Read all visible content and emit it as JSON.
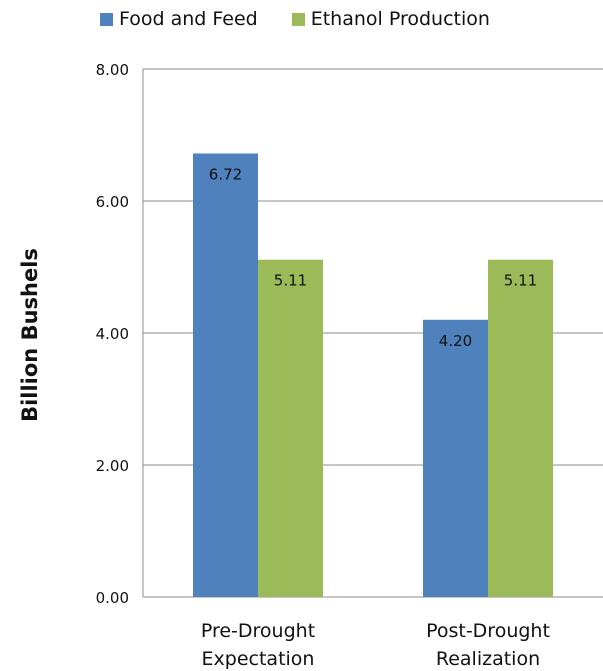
{
  "chart_data": {
    "type": "bar",
    "title": "",
    "xlabel": "",
    "ylabel": "Billion Bushels",
    "ylim": [
      0,
      8
    ],
    "yticks": [
      "0.00",
      "2.00",
      "4.00",
      "6.00",
      "8.00"
    ],
    "grid": true,
    "legend_position": "top",
    "categories": [
      [
        "Pre-Drought",
        "Expectation"
      ],
      [
        "Post-Drought",
        "Realization"
      ]
    ],
    "series": [
      {
        "name": "Food and Feed",
        "color": "#4f81bd",
        "values": [
          6.72,
          4.2
        ],
        "labels": [
          "6.72",
          "4.20"
        ]
      },
      {
        "name": "Ethanol Production",
        "color": "#9bbb59",
        "values": [
          5.11,
          5.11
        ],
        "labels": [
          "5.11",
          "5.11"
        ]
      }
    ]
  }
}
